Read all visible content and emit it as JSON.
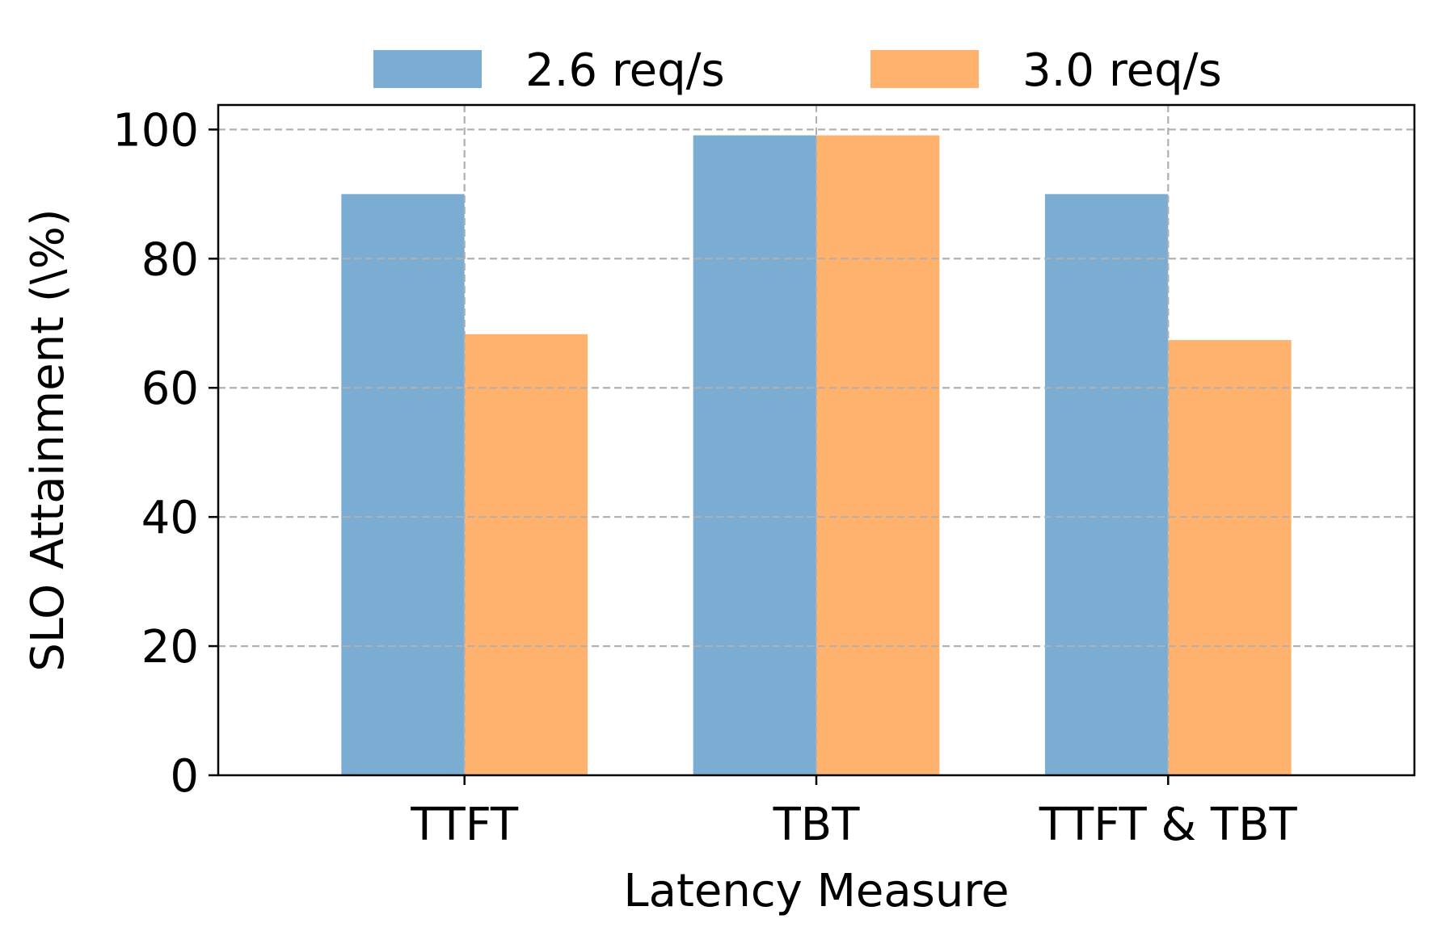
{
  "chart_data": {
    "type": "bar",
    "title": "",
    "xlabel": "Latency Measure",
    "ylabel": "SLO Attainment (\\%)",
    "categories": [
      "TTFT",
      "TBT",
      "TTFT & TBT"
    ],
    "series": [
      {
        "name": "2.6 req/s",
        "color": "#7aadd1",
        "values": [
          90.0,
          99.1,
          90.0
        ]
      },
      {
        "name": "3.0 req/s",
        "color": "#ffb26e",
        "values": [
          68.3,
          99.1,
          67.4
        ]
      }
    ],
    "ylim": [
      0,
      103.8
    ],
    "yticks": [
      "0",
      "20",
      "40",
      "60",
      "80",
      "100"
    ],
    "grid": true,
    "legend": "top-center"
  }
}
